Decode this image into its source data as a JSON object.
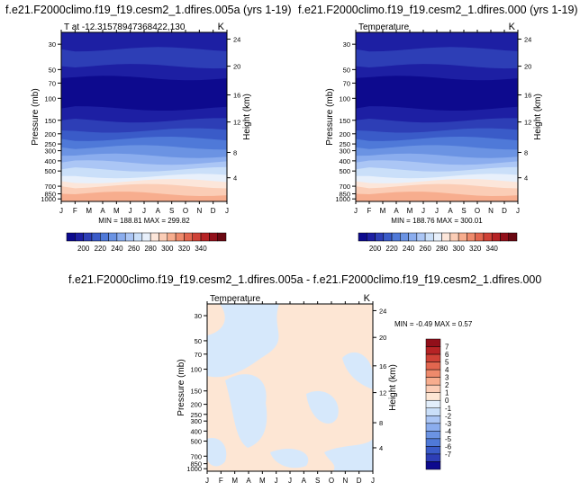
{
  "colors": {
    "scale": [
      "#0d0a8e",
      "#1d1fa3",
      "#2d3eb6",
      "#3a5bc8",
      "#4f79d8",
      "#6b93e3",
      "#8badee",
      "#abc6f5",
      "#cadff9",
      "#e8f0fb",
      "#fce6da",
      "#fbcdb6",
      "#f7ad8e",
      "#ee8a6c",
      "#e2664f",
      "#cf4237",
      "#b62325",
      "#920f1a",
      "#6a0812"
    ],
    "diff_pos": "#fde6d4",
    "diff_neg": "#d6e8fb"
  },
  "chart_data": [
    {
      "type": "heatmap",
      "title": "f.e21.F2000climo.f19_f19.cesm2_1.dfires.005a (yrs 1-19)",
      "subtitle_left": "T at -12.31578947368422,130",
      "subtitle_right": "K",
      "xlabel": "",
      "ylabel": "Pressure (mb)",
      "ylabel_right": "Height (km)",
      "x_ticks": [
        "J",
        "F",
        "M",
        "A",
        "M",
        "J",
        "J",
        "A",
        "S",
        "O",
        "N",
        "D",
        "J"
      ],
      "y_ticks": [
        "30",
        "50",
        "70",
        "100",
        "150",
        "200",
        "250",
        "300",
        "400",
        "500",
        "700",
        "850",
        "1000"
      ],
      "y_ticks_right": [
        "24",
        "20",
        "16",
        "12",
        "8",
        "4"
      ],
      "stats": "MIN = 188.81  MAX = 299.82",
      "min": 188.81,
      "max": 299.82
    },
    {
      "type": "heatmap",
      "title": "f.e21.F2000climo.f19_f19.cesm2_1.dfires.000 (yrs 1-19)",
      "subtitle_left": "Temperature",
      "subtitle_right": "K",
      "xlabel": "",
      "ylabel": "Pressure (mb)",
      "ylabel_right": "Height (km)",
      "x_ticks": [
        "J",
        "F",
        "M",
        "A",
        "M",
        "J",
        "J",
        "A",
        "S",
        "O",
        "N",
        "D",
        "J"
      ],
      "y_ticks": [
        "30",
        "50",
        "70",
        "100",
        "150",
        "200",
        "250",
        "300",
        "400",
        "500",
        "700",
        "850",
        "1000"
      ],
      "y_ticks_right": [
        "24",
        "20",
        "16",
        "12",
        "8",
        "4"
      ],
      "stats": "MIN = 188.76  MAX = 300.01",
      "min": 188.76,
      "max": 300.01
    },
    {
      "type": "heatmap",
      "title": "f.e21.F2000climo.f19_f19.cesm2_1.dfires.005a - f.e21.F2000climo.f19_f19.cesm2_1.dfires.000",
      "subtitle_left": "Temperature",
      "subtitle_right": "K",
      "xlabel": "",
      "ylabel": "Pressure (mb)",
      "ylabel_right": "Height (km)",
      "x_ticks": [
        "J",
        "F",
        "M",
        "A",
        "M",
        "J",
        "J",
        "A",
        "S",
        "O",
        "N",
        "D",
        "J"
      ],
      "y_ticks": [
        "30",
        "50",
        "70",
        "100",
        "150",
        "200",
        "250",
        "300",
        "400",
        "500",
        "700",
        "850",
        "1000"
      ],
      "y_ticks_right": [
        "24",
        "20",
        "16",
        "12",
        "8",
        "4"
      ],
      "stats": "MIN =  -0.49  MAX =    0.57",
      "min": -0.49,
      "max": 0.57
    }
  ],
  "colorbar_abs": {
    "labels": [
      "200",
      "220",
      "240",
      "260",
      "280",
      "300",
      "320",
      "340"
    ]
  },
  "colorbar_diff": {
    "labels": [
      "7",
      "6",
      "5",
      "4",
      "3",
      "2",
      "1",
      "0",
      "-1",
      "-2",
      "-3",
      "-4",
      "-5",
      "-6",
      "-7"
    ]
  }
}
